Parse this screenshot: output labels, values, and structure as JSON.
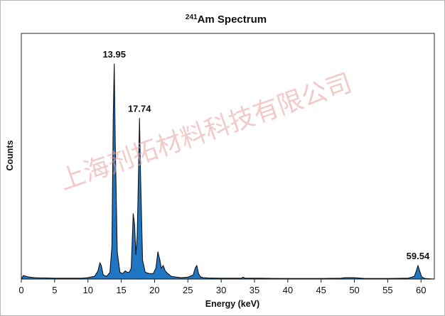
{
  "chart_data": {
    "type": "area",
    "title_sup": "241",
    "title_main": "Am Spectrum",
    "xlabel": "Energy (keV)",
    "ylabel": "Counts",
    "xlim": [
      0,
      62
    ],
    "ylim": [
      0,
      100
    ],
    "xticks": [
      0,
      5,
      10,
      15,
      20,
      25,
      30,
      35,
      40,
      45,
      50,
      55,
      60
    ],
    "series": [
      {
        "color": "#1f77c4",
        "x": [
          0.0,
          0.3,
          1.0,
          2.0,
          3.0,
          4.0,
          5.0,
          6.0,
          7.0,
          8.0,
          9.0,
          10.0,
          10.5,
          11.0,
          11.5,
          11.8,
          12.0,
          12.3,
          12.8,
          13.3,
          13.6,
          13.8,
          13.95,
          14.1,
          14.4,
          14.8,
          15.2,
          15.6,
          15.9,
          16.2,
          16.5,
          16.8,
          17.0,
          17.2,
          17.4,
          17.6,
          17.74,
          17.9,
          18.2,
          18.6,
          19.2,
          19.8,
          20.2,
          20.5,
          20.8,
          21.0,
          21.3,
          21.6,
          22.0,
          22.5,
          23.0,
          24.0,
          25.0,
          25.8,
          26.1,
          26.34,
          26.6,
          26.9,
          27.3,
          28.0,
          30.0,
          33.0,
          33.3,
          33.6,
          36.0,
          40.0,
          45.0,
          48.0,
          48.5,
          50.0,
          51.0,
          51.5,
          55.0,
          58.0,
          59.0,
          59.3,
          59.54,
          59.8,
          60.1,
          60.6,
          62.0
        ],
        "y": [
          0,
          1.3,
          0.8,
          0.5,
          0.4,
          0.4,
          0.3,
          0.3,
          0.3,
          0.3,
          0.3,
          0.5,
          0.8,
          1.0,
          3.0,
          6.0,
          5.0,
          1.5,
          1.0,
          2.5,
          12,
          60,
          79,
          50,
          10,
          2.5,
          2.0,
          3.0,
          2.5,
          2.5,
          4.0,
          24,
          20,
          9,
          16,
          40,
          59,
          38,
          7,
          2.5,
          2.0,
          2.0,
          4.0,
          10,
          7,
          4,
          5,
          3,
          2.0,
          1.0,
          0.8,
          0.5,
          0.7,
          1.5,
          4.0,
          5.0,
          2.0,
          0.8,
          0.5,
          0.4,
          0.3,
          0.3,
          0.7,
          0.3,
          0.3,
          0.2,
          0.2,
          0.3,
          0.5,
          0.5,
          0.3,
          0.2,
          0.2,
          0.3,
          1.0,
          3.0,
          5.0,
          3.0,
          0.8,
          0.2,
          0
        ]
      }
    ],
    "peak_labels": [
      {
        "text": "13.95",
        "x": 13.95,
        "y": 79
      },
      {
        "text": "17.74",
        "x": 17.74,
        "y": 59
      },
      {
        "text": "59.54",
        "x": 59.54,
        "y": 5
      }
    ]
  },
  "watermark": "上海剂拓材料科技有限公司"
}
